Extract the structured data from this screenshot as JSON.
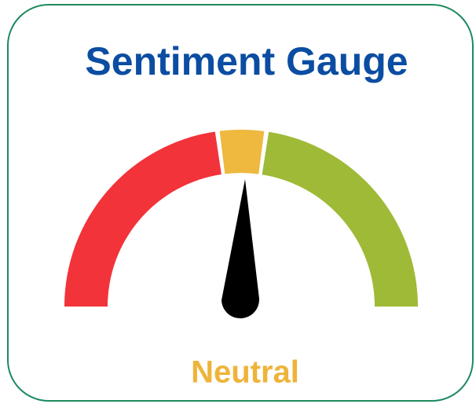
{
  "title": "Sentiment Gauge",
  "label": "Neutral"
}
